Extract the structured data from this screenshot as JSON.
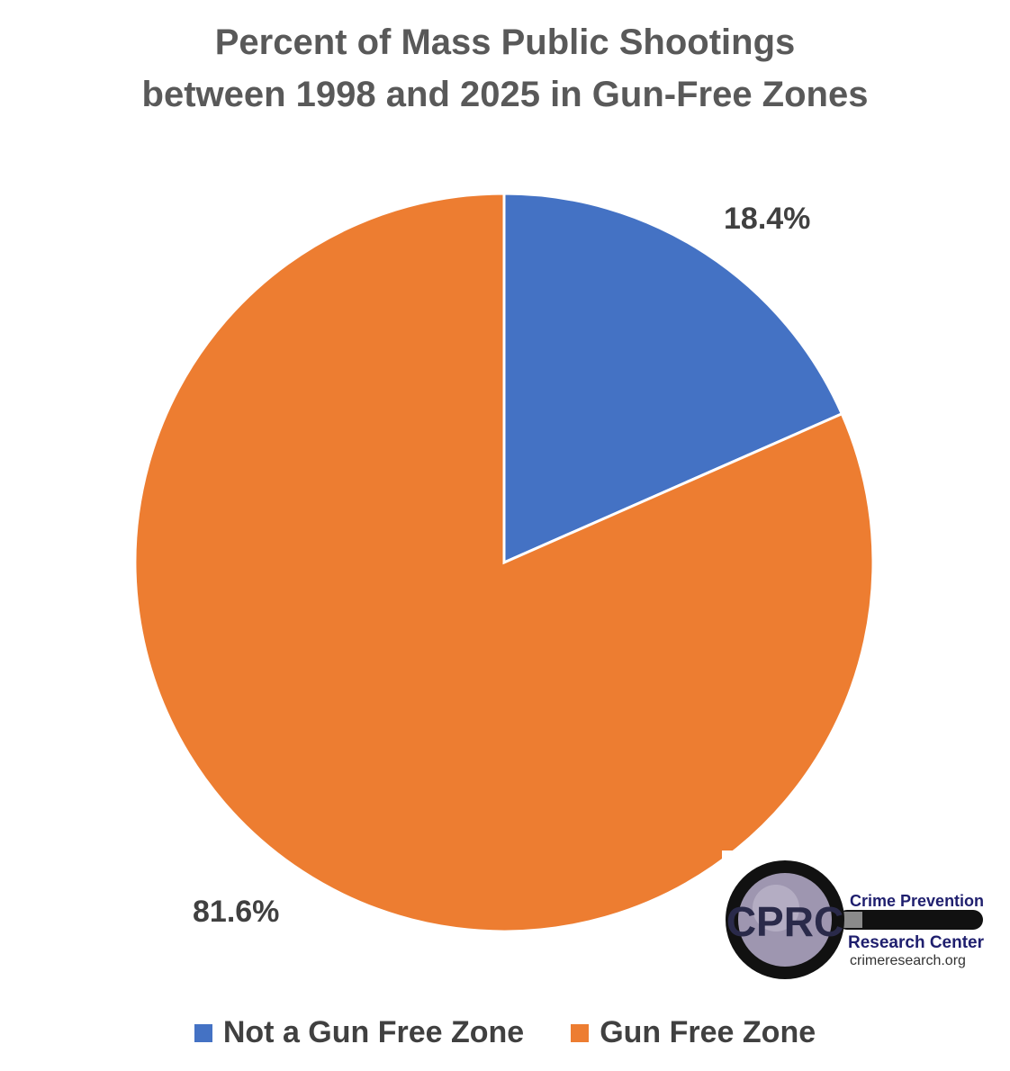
{
  "chart_data": {
    "type": "pie",
    "title": [
      "Percent of Mass Public Shootings",
      "between 1998 and 2025 in Gun-Free Zones"
    ],
    "slices": [
      {
        "name": "Not a Gun Free Zone",
        "value": 18.4,
        "label": "18.4%",
        "color": "#4472C4"
      },
      {
        "name": "Gun Free Zone",
        "value": 81.6,
        "label": "81.6%",
        "color": "#ED7D31"
      }
    ],
    "start_angle": "12 o'clock",
    "direction": "clockwise",
    "legend_position": "bottom"
  },
  "logo": {
    "initials": "CPRC",
    "line1": "Crime Prevention",
    "line2": "Research Center",
    "url": "crimeresearch.org",
    "primary_color": "#1F1F6E"
  }
}
